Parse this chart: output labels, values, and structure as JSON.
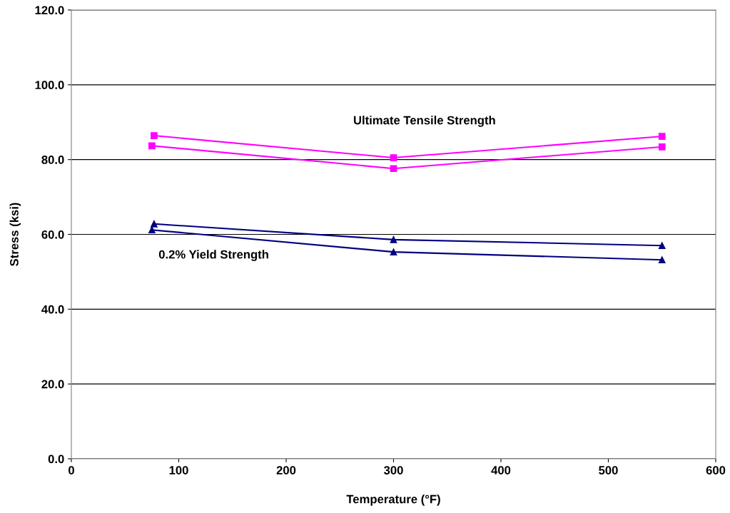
{
  "chart_data": {
    "type": "line",
    "xlabel": "Temperature (°F)",
    "ylabel": "Stress (ksi)",
    "xlim": [
      0,
      600
    ],
    "xticks": [
      0,
      100,
      200,
      300,
      400,
      500,
      600
    ],
    "ylim": [
      0,
      120
    ],
    "yticks": [
      {
        "value": 0,
        "label": "0.0"
      },
      {
        "value": 20,
        "label": "20.0"
      },
      {
        "value": 40,
        "label": "40.0"
      },
      {
        "value": 60,
        "label": "60.0"
      },
      {
        "value": 80,
        "label": "80.0"
      },
      {
        "value": 100,
        "label": "100.0"
      },
      {
        "value": 120,
        "label": "120.0"
      }
    ],
    "grid": "y",
    "series": [
      {
        "color": "#ff00ff",
        "marker": "square",
        "x": [
          77,
          300,
          550
        ],
        "values": [
          86.4,
          80.5,
          86.2
        ]
      },
      {
        "color": "#ff00ff",
        "marker": "square",
        "x": [
          75,
          300,
          550
        ],
        "values": [
          83.7,
          77.6,
          83.4
        ]
      },
      {
        "color": "#000080",
        "marker": "triangle",
        "x": [
          77,
          300,
          550
        ],
        "values": [
          62.8,
          58.6,
          57.0
        ]
      },
      {
        "color": "#000080",
        "marker": "triangle",
        "x": [
          75,
          300,
          550
        ],
        "values": [
          61.2,
          55.3,
          53.2
        ]
      }
    ],
    "annotations": [
      "Ultimate Tensile Strength",
      "0.2% Yield Strength"
    ]
  }
}
